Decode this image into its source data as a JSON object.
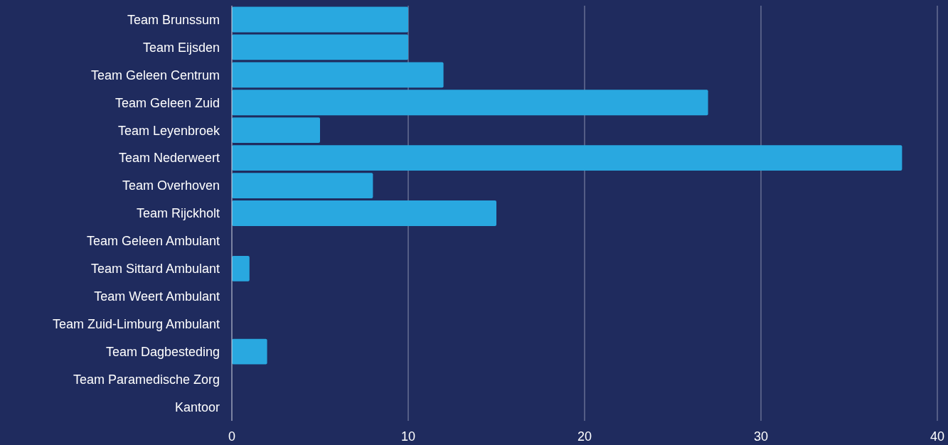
{
  "chart_data": {
    "type": "bar",
    "orientation": "horizontal",
    "categories": [
      "Team Brunssum",
      "Team Eijsden",
      "Team Geleen Centrum",
      "Team Geleen Zuid",
      "Team Leyenbroek",
      "Team Nederweert",
      "Team Overhoven",
      "Team Rijckholt",
      "Team Geleen Ambulant",
      "Team Sittard Ambulant",
      "Team Weert Ambulant",
      "Team Zuid-Limburg Ambulant",
      "Team Dagbesteding",
      "Team Paramedische Zorg",
      "Kantoor"
    ],
    "values": [
      10,
      10,
      12,
      27,
      5,
      38,
      8,
      15,
      0,
      1,
      0,
      0,
      2,
      0,
      0
    ],
    "color": "#29a8e0",
    "xlim": [
      0,
      40
    ],
    "xticks": [
      0,
      10,
      20,
      30,
      40
    ],
    "grid": "x"
  }
}
